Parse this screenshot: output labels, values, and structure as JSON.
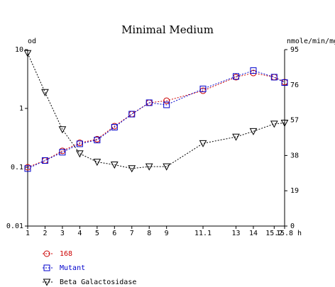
{
  "chart_data": {
    "type": "line",
    "title": "Minimal Medium",
    "left_axis": {
      "label": "od",
      "scale": "log",
      "range": [
        0.01,
        10
      ],
      "ticks": [
        {
          "value": 10,
          "label": "10"
        },
        {
          "value": 1,
          "label": "1"
        },
        {
          "value": 0.1,
          "label": "0.1"
        },
        {
          "value": 0.01,
          "label": "0.01"
        }
      ]
    },
    "right_axis": {
      "label": "nmole/min/mg",
      "scale": "linear",
      "range": [
        0,
        95
      ],
      "ticks": [
        {
          "value": 95,
          "label": "95"
        },
        {
          "value": 76,
          "label": "76"
        },
        {
          "value": 57,
          "label": "57"
        },
        {
          "value": 38,
          "label": "38"
        },
        {
          "value": 19,
          "label": "19"
        },
        {
          "value": 0,
          "label": "0"
        }
      ]
    },
    "x_axis": {
      "unit_label": "h",
      "range": [
        1,
        15.8
      ],
      "ticks": [
        {
          "value": 1,
          "label": "1"
        },
        {
          "value": 2,
          "label": "2"
        },
        {
          "value": 3,
          "label": "3"
        },
        {
          "value": 4,
          "label": "4"
        },
        {
          "value": 5,
          "label": "5"
        },
        {
          "value": 6,
          "label": "6"
        },
        {
          "value": 7,
          "label": "7"
        },
        {
          "value": 8,
          "label": "8"
        },
        {
          "value": 9,
          "label": "9"
        },
        {
          "value": 11.1,
          "label": "11.1"
        },
        {
          "value": 13,
          "label": "13"
        },
        {
          "value": 14,
          "label": "14"
        },
        {
          "value": 15.2,
          "label": "15.2"
        },
        {
          "value": 15.8,
          "label": "15.8"
        }
      ]
    },
    "grid": false,
    "legend_position": "bottom-left",
    "series": [
      {
        "name": "168",
        "axis": "left",
        "color": "#cc0000",
        "marker": "circle",
        "x": [
          1,
          2,
          3,
          4,
          5,
          6,
          7,
          8,
          9,
          11.1,
          13,
          14,
          15.2,
          15.8
        ],
        "y": [
          0.1,
          0.13,
          0.19,
          0.26,
          0.3,
          0.5,
          0.8,
          1.25,
          1.35,
          2.0,
          3.4,
          4.0,
          3.4,
          2.8
        ]
      },
      {
        "name": "Mutant",
        "axis": "left",
        "color": "#0000cc",
        "marker": "square",
        "x": [
          1,
          2,
          3,
          4,
          5,
          6,
          7,
          8,
          9,
          11.1,
          13,
          14,
          15.2,
          15.8
        ],
        "y": [
          0.095,
          0.13,
          0.18,
          0.25,
          0.29,
          0.48,
          0.8,
          1.25,
          1.15,
          2.15,
          3.5,
          4.4,
          3.4,
          2.75
        ]
      },
      {
        "name": "Beta Galactosidase",
        "axis": "right",
        "color": "#000000",
        "marker": "triangle-down",
        "x": [
          1,
          2,
          3,
          4,
          5,
          6,
          7,
          8,
          9,
          11.1,
          13,
          14,
          15.2,
          15.8
        ],
        "y": [
          93,
          72,
          52,
          39,
          34.5,
          33,
          31,
          32,
          32,
          44.5,
          48,
          51,
          55,
          55.5
        ]
      }
    ]
  }
}
